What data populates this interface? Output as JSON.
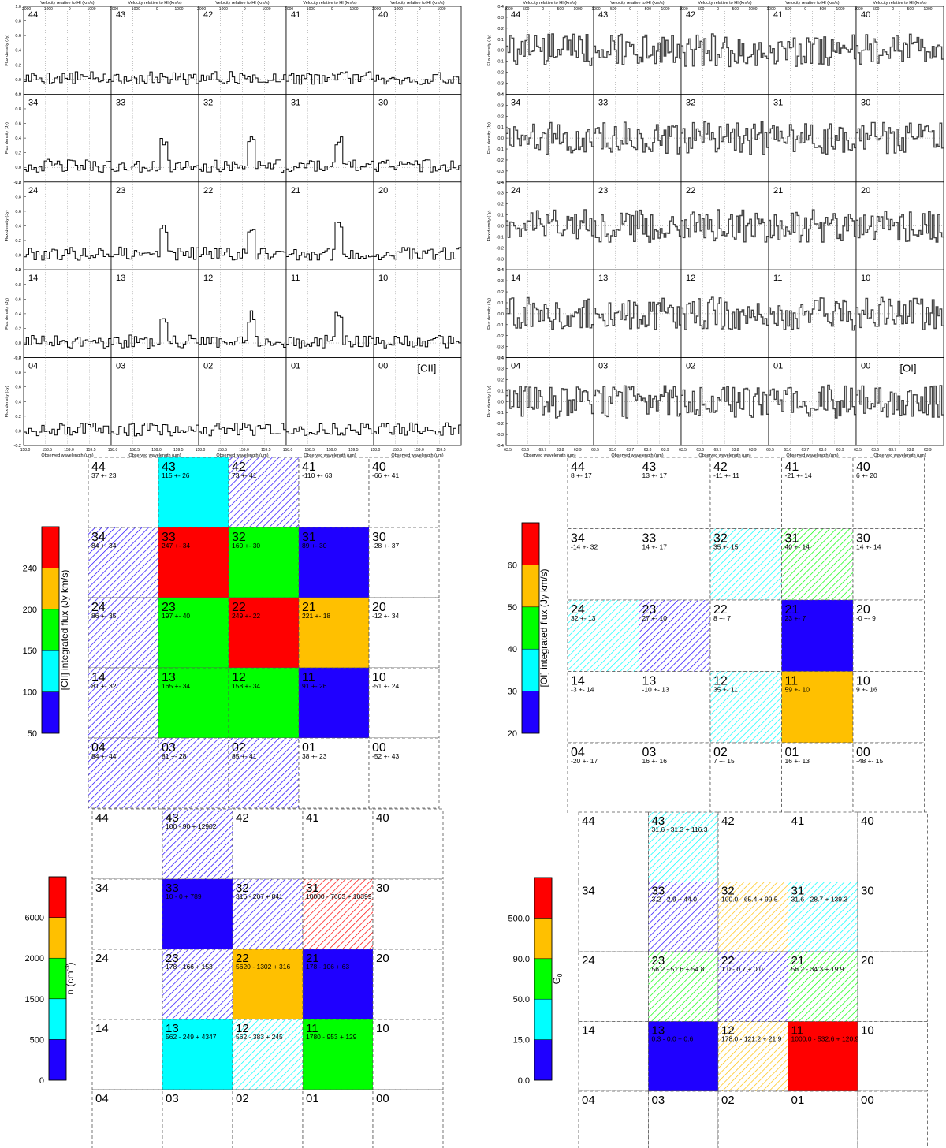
{
  "spectra": [
    {
      "label": "[CII]",
      "wave_ticks": [
        "158.0",
        "158.5",
        "159.0",
        "159.5"
      ],
      "vel_ticks": [
        "-2000",
        "-1000",
        "0",
        "1000"
      ],
      "flux_ticks": [
        "-0.2",
        "0.0",
        "0.2",
        "0.4",
        "0.6",
        "0.8",
        "1.0"
      ],
      "flux_range": [
        -0.2,
        1.0
      ],
      "xlabel": "Observed wavelength (μm)",
      "ylabel": "Flux density (Jy)",
      "toplabel": "Velocity relative to HI (km/s)",
      "grey": false
    },
    {
      "label": "[OI]",
      "wave_ticks": [
        "63.5",
        "63.6",
        "63.7",
        "63.8",
        "63.9"
      ],
      "vel_ticks": [
        "-1000",
        "-500",
        "0",
        "500",
        "1000"
      ],
      "flux_ticks": [
        "-0.4",
        "-0.3",
        "-0.2",
        "-0.1",
        "0.0",
        "0.1",
        "0.2",
        "0.3",
        "0.4"
      ],
      "flux_range": [
        -0.4,
        0.4
      ],
      "xlabel": "Observed wavelength (μm)",
      "ylabel": "Flux density (Jy)",
      "toplabel": "Velocity relative to HI (km/s)",
      "grey": true
    }
  ],
  "spaxel_rows": [
    [
      "44",
      "43",
      "42",
      "41",
      "40"
    ],
    [
      "34",
      "33",
      "32",
      "31",
      "30"
    ],
    [
      "24",
      "23",
      "22",
      "21",
      "20"
    ],
    [
      "14",
      "13",
      "12",
      "11",
      "10"
    ],
    [
      "04",
      "03",
      "02",
      "01",
      "00"
    ]
  ],
  "color_palette": [
    "#1f00ff",
    "#00ffff",
    "#00ff00",
    "#ffc000",
    "#ff0000"
  ],
  "maps": [
    {
      "colorbar_label": "[CII] integrated flux (Jy km/s)",
      "colorbar_ticks": [
        "50",
        "100",
        "150",
        "200",
        "240"
      ],
      "cells": {
        "44": {
          "value": "37 +- 23"
        },
        "43": {
          "value": "115 +- 26",
          "color": 1,
          "hatch": false
        },
        "42": {
          "value": "73 +- 41",
          "color": 0,
          "hatch": true
        },
        "41": {
          "value": "-110 +- 63"
        },
        "40": {
          "value": "-66 +- 41"
        },
        "34": {
          "value": "84 +- 34",
          "color": 0,
          "hatch": true
        },
        "33": {
          "value": "247 +- 34",
          "color": 4,
          "hatch": false
        },
        "32": {
          "value": "160 +- 30",
          "color": 2,
          "hatch": false
        },
        "31": {
          "value": "89 +- 30",
          "color": 0,
          "hatch": false
        },
        "30": {
          "value": "-28 +- 37"
        },
        "24": {
          "value": "86 +- 35",
          "color": 0,
          "hatch": true
        },
        "23": {
          "value": "197 +- 40",
          "color": 2,
          "hatch": false
        },
        "22": {
          "value": "249 +- 22",
          "color": 4,
          "hatch": false
        },
        "21": {
          "value": "221 +- 18",
          "color": 3,
          "hatch": false
        },
        "20": {
          "value": "-12 +- 34"
        },
        "14": {
          "value": "81 +- 32",
          "color": 0,
          "hatch": true
        },
        "13": {
          "value": "165 +- 34",
          "color": 2,
          "hatch": false
        },
        "12": {
          "value": "158 +- 34",
          "color": 2,
          "hatch": false
        },
        "11": {
          "value": "91 +- 26",
          "color": 0,
          "hatch": false
        },
        "10": {
          "value": "-51 +- 24"
        },
        "04": {
          "value": "84 +- 44",
          "color": 0,
          "hatch": true
        },
        "03": {
          "value": "81 +- 28",
          "color": 0,
          "hatch": true
        },
        "02": {
          "value": "85 +- 41",
          "color": 0,
          "hatch": true
        },
        "01": {
          "value": "38 +- 23"
        },
        "00": {
          "value": "-52 +- 43"
        }
      }
    },
    {
      "colorbar_label": "[OI] integrated flux (Jy km/s)",
      "colorbar_ticks": [
        "20",
        "30",
        "40",
        "50",
        "60"
      ],
      "cells": {
        "44": {
          "value": "8 +- 17"
        },
        "43": {
          "value": "13 +- 17"
        },
        "42": {
          "value": "-11 +- 11"
        },
        "41": {
          "value": "-21 +- 14"
        },
        "40": {
          "value": "6 +- 20"
        },
        "34": {
          "value": "-14 +- 32"
        },
        "33": {
          "value": "14 +- 17"
        },
        "32": {
          "value": "35 +- 15",
          "color": 1,
          "hatch": true
        },
        "31": {
          "value": "40 +- 14",
          "color": 2,
          "hatch": true
        },
        "30": {
          "value": "14 +- 14"
        },
        "24": {
          "value": "32 +- 13",
          "color": 1,
          "hatch": true
        },
        "23": {
          "value": "27 +- 10",
          "color": 0,
          "hatch": true
        },
        "22": {
          "value": "8 +- 7"
        },
        "21": {
          "value": "23 +- 7",
          "color": 0,
          "hatch": false
        },
        "20": {
          "value": "-0 +- 9"
        },
        "14": {
          "value": "-3 +- 14"
        },
        "13": {
          "value": "-10 +- 13"
        },
        "12": {
          "value": "35 +- 11",
          "color": 1,
          "hatch": true
        },
        "11": {
          "value": "59 +- 10",
          "color": 3,
          "hatch": false
        },
        "10": {
          "value": "9 +- 16"
        },
        "04": {
          "value": "-20 +- 17"
        },
        "03": {
          "value": "16 +- 16"
        },
        "02": {
          "value": "7 +- 15"
        },
        "01": {
          "value": "16 +- 13"
        },
        "00": {
          "value": "-48 +- 15"
        }
      }
    },
    {
      "colorbar_label": "n (cm",
      "colorbar_label_sup": "-3",
      "colorbar_label_end": ")",
      "colorbar_ticks": [
        "0",
        "500",
        "1500",
        "2000",
        "6000"
      ],
      "cells": {
        "43": {
          "value": "100 - 90 + 12902",
          "color": 0,
          "hatch": true
        },
        "33": {
          "value": "10 - 0 + 789",
          "color": 0,
          "hatch": false
        },
        "32": {
          "value": "316 - 207 + 841",
          "color": 0,
          "hatch": true
        },
        "31": {
          "value": "10000 - 7603 + 10399",
          "color": 4,
          "hatch": true
        },
        "23": {
          "value": "178 - 166 + 153",
          "color": 0,
          "hatch": true
        },
        "22": {
          "value": "5620 - 1302 + 316",
          "color": 3,
          "hatch": false
        },
        "21": {
          "value": "178 - 106 + 63",
          "color": 0,
          "hatch": false
        },
        "13": {
          "value": "562 - 249 + 4347",
          "color": 1,
          "hatch": false
        },
        "12": {
          "value": "562 - 383 + 245",
          "color": 1,
          "hatch": true
        },
        "11": {
          "value": "1780 - 953 + 129",
          "color": 2,
          "hatch": false
        }
      }
    },
    {
      "colorbar_label": "G",
      "colorbar_label_sub": "0",
      "colorbar_ticks": [
        "0.0",
        "15.0",
        "50.0",
        "90.0",
        "500.0"
      ],
      "cells": {
        "43": {
          "value": "31.6 - 31.3 + 116.3",
          "color": 1,
          "hatch": true
        },
        "33": {
          "value": "3.2 - 2.9 + 44.0",
          "color": 0,
          "hatch": true
        },
        "32": {
          "value": "100.0 - 65.4 + 99.5",
          "color": 3,
          "hatch": true
        },
        "31": {
          "value": "31.6 - 28.7 + 139.3",
          "color": 1,
          "hatch": true
        },
        "23": {
          "value": "56.2 - 51.6 + 54.8",
          "color": 2,
          "hatch": true
        },
        "22": {
          "value": "1.0 - 0.7 + 0.0",
          "color": 0,
          "hatch": true
        },
        "21": {
          "value": "56.2 - 34.3 + 19.9",
          "color": 2,
          "hatch": true
        },
        "13": {
          "value": "0.3 - 0.0 + 0.6",
          "color": 0,
          "hatch": false
        },
        "12": {
          "value": "178.0 - 121.2 + 21.9",
          "color": 3,
          "hatch": true
        },
        "11": {
          "value": "1000.0 - 532.6 + 120.9",
          "color": 4,
          "hatch": false
        }
      }
    }
  ]
}
